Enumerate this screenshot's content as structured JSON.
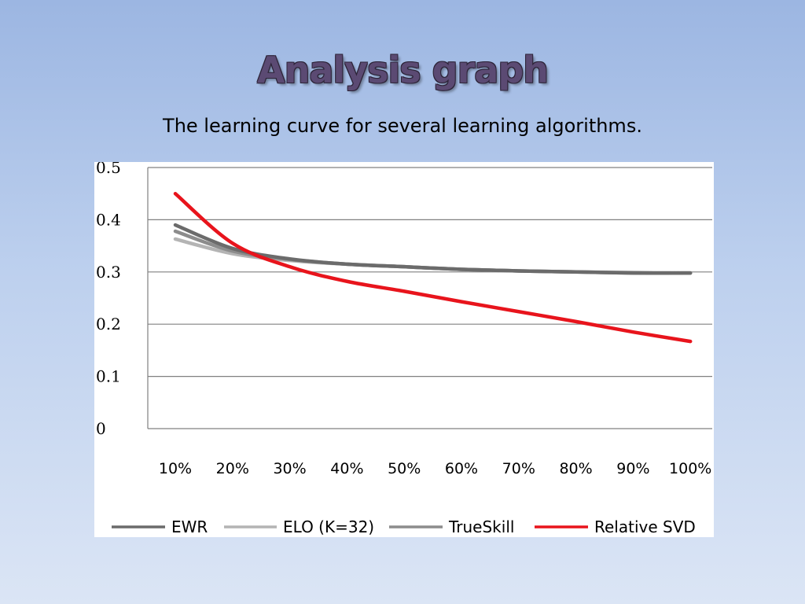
{
  "slide": {
    "title": "Analysis graph",
    "subtitle": "The learning curve for several learning algorithms."
  },
  "chart_data": {
    "type": "line",
    "title": "",
    "xlabel": "",
    "ylabel": "",
    "categories": [
      "10%",
      "20%",
      "30%",
      "40%",
      "50%",
      "60%",
      "70%",
      "80%",
      "90%",
      "100%"
    ],
    "y_ticks": [
      "0",
      "0.1",
      "0.2",
      "0.3",
      "0.4",
      "0.5"
    ],
    "y_tick_values": [
      0,
      0.1,
      0.2,
      0.3,
      0.4,
      0.5
    ],
    "ylim": [
      0,
      0.5
    ],
    "grid": "horizontal",
    "legend_position": "bottom",
    "series": [
      {
        "name": "EWR",
        "color": "#6b6b6b",
        "values": [
          0.39,
          0.345,
          0.325,
          0.315,
          0.31,
          0.305,
          0.302,
          0.3,
          0.298,
          0.298
        ]
      },
      {
        "name": "ELO (K=32)",
        "color": "#b4b4b4",
        "values": [
          0.363,
          0.335,
          0.322,
          0.315,
          0.31,
          0.305,
          0.302,
          0.3,
          0.299,
          0.298
        ]
      },
      {
        "name": "TrueSkill",
        "color": "#8c8c8c",
        "values": [
          0.378,
          0.34,
          0.324,
          0.315,
          0.31,
          0.305,
          0.302,
          0.3,
          0.298,
          0.298
        ]
      },
      {
        "name": "Relative SVD",
        "color": "#e8141c",
        "values": [
          0.45,
          0.355,
          0.31,
          0.282,
          0.263,
          0.243,
          0.224,
          0.205,
          0.185,
          0.167
        ]
      }
    ]
  }
}
